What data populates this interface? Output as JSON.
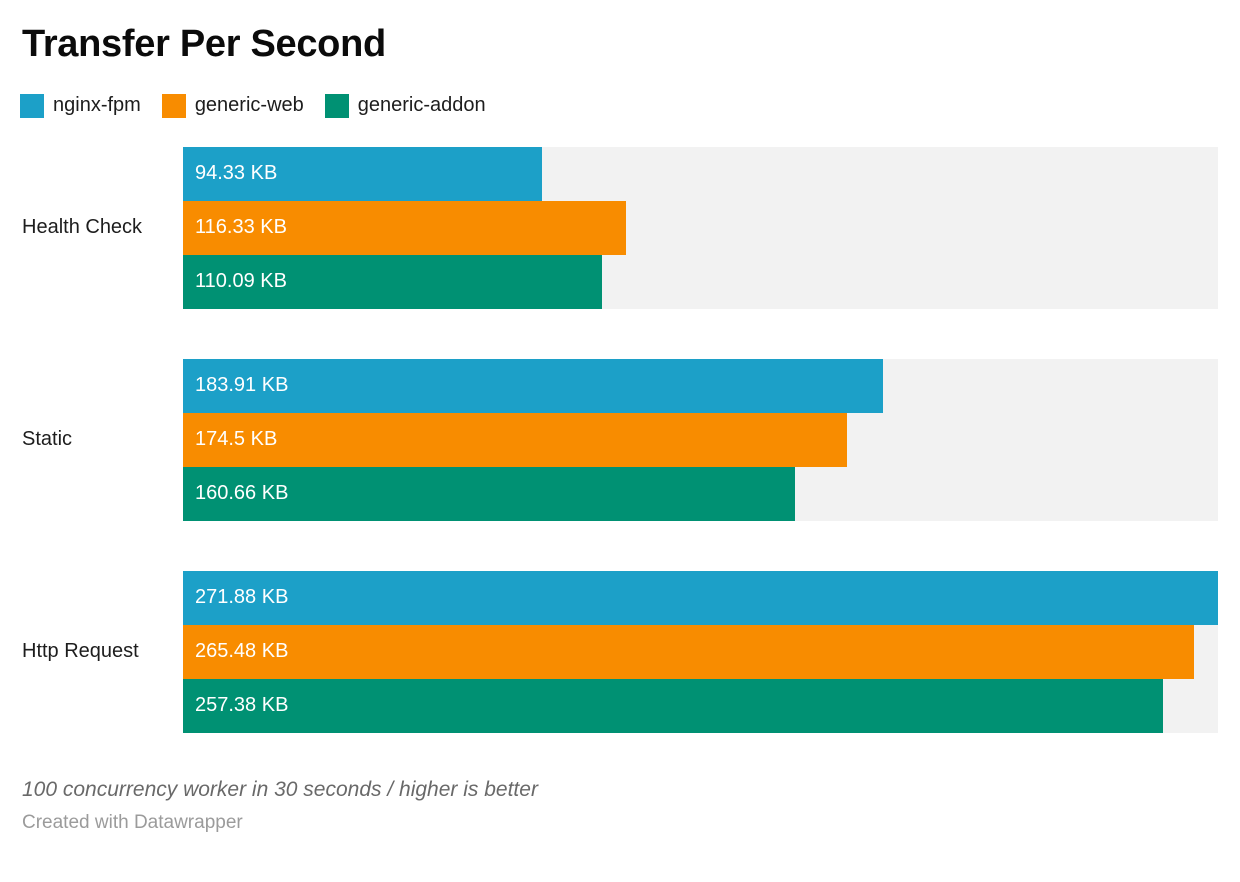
{
  "header": {
    "title": "Transfer Per Second"
  },
  "chart_data": {
    "type": "bar",
    "orientation": "horizontal",
    "title": "Transfer Per Second",
    "categories": [
      "Health Check",
      "Static",
      "Http Request"
    ],
    "series": [
      {
        "name": "nginx-fpm",
        "color": "#1CA0C8",
        "values": [
          94.33,
          183.91,
          271.88
        ],
        "value_labels": [
          "94.33 KB",
          "183.91 KB",
          "271.88 KB"
        ]
      },
      {
        "name": "generic-web",
        "color": "#F88C00",
        "values": [
          116.33,
          174.5,
          265.48
        ],
        "value_labels": [
          "116.33 KB",
          "174.5 KB",
          "265.48 KB"
        ]
      },
      {
        "name": "generic-addon",
        "color": "#009173",
        "values": [
          110.09,
          160.66,
          257.38
        ],
        "value_labels": [
          "110.09 KB",
          "160.66 KB",
          "257.38 KB"
        ]
      }
    ],
    "unit": "KB",
    "xlim": [
      0,
      271.88
    ],
    "legend_position": "top",
    "grid": false,
    "value_labels": "inside-start",
    "track_color": "#F2F2F2"
  },
  "footer": {
    "note": "100 concurrency worker in 30 seconds / higher is better",
    "attribution": "Created with Datawrapper"
  },
  "colors": {
    "title_text": "#0B0B0B",
    "label_text": "#1D1D1D",
    "bar_value_text": "#FFFFFF",
    "note_text": "#696969",
    "attribution_text": "#9B9B9B",
    "background": "#FFFFFF"
  }
}
